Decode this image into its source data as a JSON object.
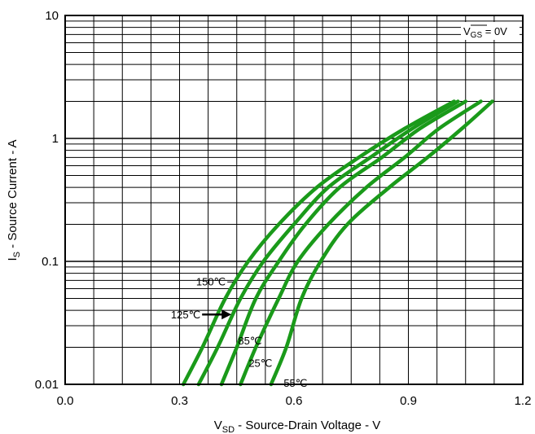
{
  "chart_data": {
    "type": "line",
    "xlabel": {
      "main": "V",
      "sub": "SD",
      "rest": " - Source-Drain Voltage - V"
    },
    "ylabel": {
      "main": "I",
      "sub": "S",
      "rest": " - Source Current - A"
    },
    "xlim": [
      0.0,
      1.2
    ],
    "ylim": [
      0.01,
      10
    ],
    "yscale": "log",
    "grid": true,
    "x_ticks": [
      "0.0",
      "0.3",
      "0.6",
      "0.9",
      "1.2"
    ],
    "y_ticks": [
      "0.01",
      "0.1",
      "1",
      "10"
    ],
    "condition": {
      "main": "V",
      "sub": "GS",
      "rest": " = 0V"
    },
    "series_color": "#1a9a1a",
    "series": [
      {
        "name": "150℃",
        "x": [
          0.31,
          0.36,
          0.42,
          0.48,
          0.56,
          0.66,
          0.77,
          0.89,
          1.02
        ],
        "y": [
          0.01,
          0.02,
          0.05,
          0.1,
          0.2,
          0.4,
          0.7,
          1.2,
          2.0
        ]
      },
      {
        "name": "125℃",
        "x": [
          0.35,
          0.4,
          0.46,
          0.52,
          0.6,
          0.69,
          0.8,
          0.91,
          1.03
        ],
        "y": [
          0.01,
          0.02,
          0.05,
          0.1,
          0.2,
          0.4,
          0.7,
          1.2,
          2.0
        ]
      },
      {
        "name": "85℃",
        "x": [
          0.41,
          0.45,
          0.5,
          0.56,
          0.63,
          0.72,
          0.83,
          0.93,
          1.05
        ],
        "y": [
          0.01,
          0.02,
          0.05,
          0.1,
          0.2,
          0.4,
          0.7,
          1.2,
          2.0
        ]
      },
      {
        "name": "25℃",
        "x": [
          0.46,
          0.5,
          0.56,
          0.61,
          0.69,
          0.79,
          0.89,
          0.98,
          1.09
        ],
        "y": [
          0.01,
          0.02,
          0.05,
          0.1,
          0.2,
          0.4,
          0.7,
          1.2,
          2.0
        ]
      },
      {
        "name": "-55℃",
        "x": [
          0.54,
          0.58,
          0.62,
          0.67,
          0.74,
          0.85,
          0.95,
          1.04,
          1.12
        ],
        "y": [
          0.01,
          0.02,
          0.05,
          0.1,
          0.2,
          0.4,
          0.7,
          1.2,
          2.0
        ]
      }
    ]
  }
}
